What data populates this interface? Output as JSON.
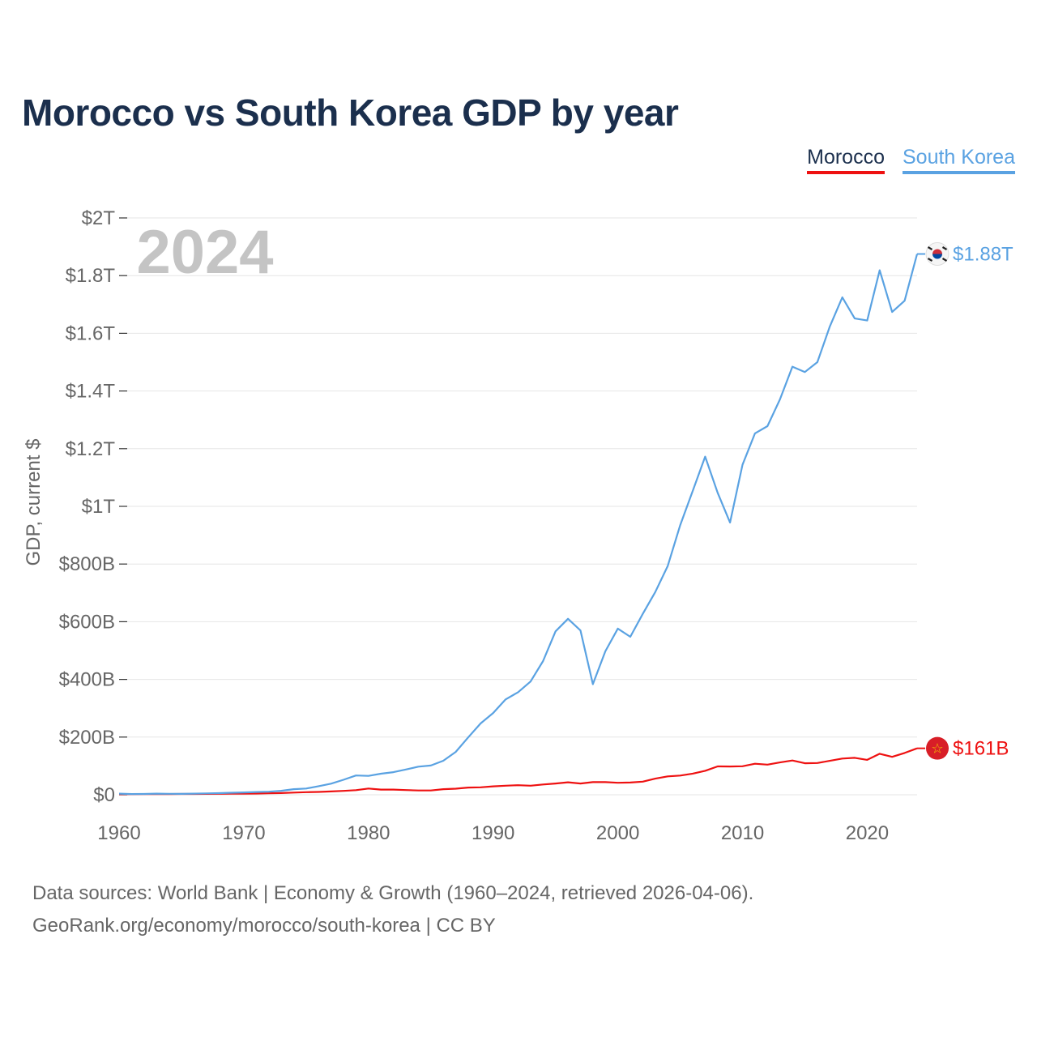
{
  "title": "Morocco vs South Korea GDP by year",
  "legend": [
    {
      "label": "Morocco",
      "color": "#ee1111"
    },
    {
      "label": "South Korea",
      "color": "#5aa2e2"
    }
  ],
  "footer": {
    "line1": "Data sources: World Bank | Economy & Growth (1960–2024, retrieved 2026-04-06).",
    "line2": "GeoRank.org/economy/morocco/south-korea | CC BY"
  },
  "chart_data": {
    "type": "line",
    "title": "Morocco vs South Korea GDP by year",
    "xlabel": "",
    "ylabel": "GDP, current $",
    "xlim": [
      1960,
      2024
    ],
    "ylim": [
      0,
      2000
    ],
    "y_unit": "billion US$",
    "x_ticks": [
      "1960",
      "1970",
      "1980",
      "1990",
      "2000",
      "2010",
      "2020"
    ],
    "y_ticks": [
      {
        "value": 0,
        "label": "$0"
      },
      {
        "value": 200,
        "label": "$200B"
      },
      {
        "value": 400,
        "label": "$400B"
      },
      {
        "value": 600,
        "label": "$600B"
      },
      {
        "value": 800,
        "label": "$800B"
      },
      {
        "value": 1000,
        "label": "$1T"
      },
      {
        "value": 1200,
        "label": "$1.2T"
      },
      {
        "value": 1400,
        "label": "$1.4T"
      },
      {
        "value": 1600,
        "label": "$1.6T"
      },
      {
        "value": 1800,
        "label": "$1.8T"
      },
      {
        "value": 2000,
        "label": "$2T"
      }
    ],
    "grid": true,
    "year_watermark": "2024",
    "x": [
      1960,
      1961,
      1962,
      1963,
      1964,
      1965,
      1966,
      1967,
      1968,
      1969,
      1970,
      1971,
      1972,
      1973,
      1974,
      1975,
      1976,
      1977,
      1978,
      1979,
      1980,
      1981,
      1982,
      1983,
      1984,
      1985,
      1986,
      1987,
      1988,
      1989,
      1990,
      1991,
      1992,
      1993,
      1994,
      1995,
      1996,
      1997,
      1998,
      1999,
      2000,
      2001,
      2002,
      2003,
      2004,
      2005,
      2006,
      2007,
      2008,
      2009,
      2010,
      2011,
      2012,
      2013,
      2014,
      2015,
      2016,
      2017,
      2018,
      2019,
      2020,
      2021,
      2022,
      2023,
      2024
    ],
    "series": [
      {
        "name": "Morocco",
        "color": "#ee1111",
        "end_label": "$161B",
        "values": [
          2.0,
          2.0,
          2.2,
          2.4,
          2.6,
          2.8,
          2.9,
          3.1,
          3.4,
          3.7,
          3.9,
          4.3,
          5.0,
          5.9,
          7.6,
          8.9,
          9.8,
          11.5,
          13.5,
          16.0,
          21.7,
          17.9,
          17.9,
          16.3,
          14.9,
          15.0,
          19.3,
          21.1,
          24.9,
          25.9,
          29.2,
          31.5,
          33.2,
          31.4,
          35.6,
          39.0,
          43.2,
          39.0,
          43.9,
          43.7,
          41.6,
          42.3,
          45.5,
          55.9,
          63.8,
          66.5,
          73.3,
          83.1,
          98.2,
          98.1,
          98.9,
          107.6,
          104.4,
          112.2,
          118.7,
          109.2,
          110.1,
          117.6,
          125.5,
          128.0,
          121.2,
          142.0,
          131.4,
          145.0,
          161.0
        ]
      },
      {
        "name": "South Korea",
        "color": "#5aa2e2",
        "end_label": "$1.88T",
        "values": [
          4.0,
          2.4,
          2.8,
          3.9,
          3.5,
          3.1,
          3.8,
          4.7,
          5.6,
          7.0,
          8.2,
          9.5,
          10.7,
          13.9,
          19.3,
          21.7,
          29.8,
          38.4,
          52.0,
          66.9,
          65.4,
          72.9,
          78.3,
          87.7,
          97.5,
          101.3,
          117.9,
          148.6,
          199.0,
          247.6,
          283.4,
          330.6,
          355.5,
          392.7,
          463.6,
          566.6,
          610.2,
          569.8,
          383.3,
          497.5,
          576.2,
          547.7,
          627.2,
          702.7,
          793.2,
          934.9,
          1053.2,
          1172.6,
          1047.3,
          943.9,
          1144.1,
          1253.2,
          1278.0,
          1370.8,
          1484.3,
          1465.8,
          1500.1,
          1623.9,
          1724.8,
          1651.4,
          1644.3,
          1818.4,
          1673.9,
          1712.8,
          1875.0
        ]
      }
    ]
  }
}
